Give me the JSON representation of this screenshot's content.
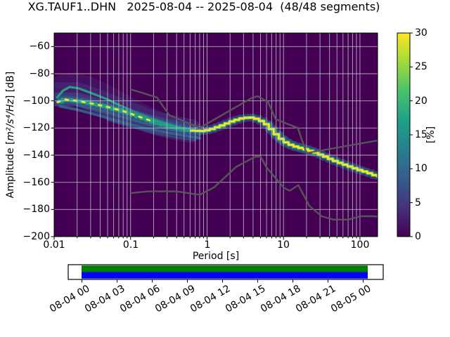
{
  "figure": {
    "title": "XG.TAUF1..DHN   2025-08-04 -- 2025-08-04  (48/48 segments)"
  },
  "axes": {
    "x": {
      "label": "Period [s]",
      "scale": "log",
      "min": 0.01,
      "max": 170,
      "tick_labels": [
        "0.01",
        "0.1",
        "1",
        "10",
        "100"
      ],
      "tick_values": [
        0.01,
        0.1,
        1,
        10,
        100
      ]
    },
    "y": {
      "label_prefix": "Amplitude [",
      "label_math": "m²/s⁴/Hz",
      "label_suffix": "] [dB]",
      "min": -200,
      "max": -50,
      "tick_labels": [
        "−60",
        "−80",
        "−100",
        "−120",
        "−140",
        "−160",
        "−180",
        "−200"
      ],
      "tick_values": [
        -60,
        -80,
        -100,
        -120,
        -140,
        -160,
        -180,
        -200
      ]
    }
  },
  "colorbar": {
    "label": "[%]",
    "min": 0,
    "max": 30,
    "tick_labels": [
      "0",
      "5",
      "10",
      "15",
      "20",
      "25",
      "30"
    ],
    "tick_values": [
      0,
      5,
      10,
      15,
      20,
      25,
      30
    ],
    "colormap": "viridis",
    "gradient_stops": [
      "#440154",
      "#46327e",
      "#365c8d",
      "#277f8e",
      "#1fa187",
      "#4ac16d",
      "#a0da39",
      "#fde725"
    ]
  },
  "timeline": {
    "tick_labels": [
      "08-04 00",
      "08-04 03",
      "08-04 06",
      "08-04 09",
      "08-04 12",
      "08-04 15",
      "08-04 18",
      "08-04 21",
      "08-05 00"
    ],
    "coverage_color_top": "#008000",
    "coverage_color_bottom": "#0000ff",
    "box_color": "#ffffff"
  },
  "chart_data": {
    "type": "heatmap",
    "title": "XG.TAUF1..DHN   2025-08-04 -- 2025-08-04  (48/48 segments)",
    "xlabel": "Period [s]",
    "ylabel": "Amplitude [m²/s⁴/Hz] [dB]",
    "xscale": "log",
    "xlim": [
      0.01,
      170
    ],
    "ylim": [
      -200,
      -50
    ],
    "colorbar_label": "[%]",
    "colorbar_lim": [
      0,
      30
    ],
    "colormap": "viridis",
    "grid": true,
    "background_color": "#440154",
    "grid_color": "#c6c6cc",
    "ppsd_mode_ridge": [
      [
        0.011,
        -101
      ],
      [
        0.014,
        -99
      ],
      [
        0.02,
        -100
      ],
      [
        0.03,
        -101.8
      ],
      [
        0.05,
        -104.5
      ],
      [
        0.08,
        -107.5
      ],
      [
        0.12,
        -111
      ],
      [
        0.18,
        -114.5
      ],
      [
        0.27,
        -117.5
      ],
      [
        0.4,
        -119.8
      ],
      [
        0.6,
        -121.8
      ],
      [
        0.85,
        -122.3
      ],
      [
        1.1,
        -121.3
      ],
      [
        1.6,
        -118
      ],
      [
        2.2,
        -114.8
      ],
      [
        3.0,
        -112.6
      ],
      [
        4.0,
        -112.3
      ],
      [
        4.8,
        -113.8
      ],
      [
        5.8,
        -116.5
      ],
      [
        7.0,
        -121
      ],
      [
        8.5,
        -126
      ],
      [
        10,
        -129.5
      ],
      [
        12,
        -132
      ],
      [
        15,
        -134
      ],
      [
        20,
        -135.8
      ],
      [
        26,
        -138
      ],
      [
        35,
        -141
      ],
      [
        50,
        -144.8
      ],
      [
        70,
        -147.8
      ],
      [
        95,
        -150.5
      ],
      [
        130,
        -153
      ],
      [
        170,
        -155.5
      ]
    ],
    "noise_models": {
      "color": "#595959",
      "nhnm": [
        [
          0.1,
          -91.5
        ],
        [
          0.22,
          -97.4
        ],
        [
          0.32,
          -110.5
        ],
        [
          0.8,
          -120
        ],
        [
          3.8,
          -98
        ],
        [
          4.6,
          -96.5
        ],
        [
          6.3,
          -101
        ],
        [
          7.9,
          -113.5
        ],
        [
          15.4,
          -120
        ],
        [
          20,
          -138.5
        ],
        [
          354.8,
          -126
        ]
      ],
      "nlnm": [
        [
          0.1,
          -168
        ],
        [
          0.17,
          -166.7
        ],
        [
          0.4,
          -166.7
        ],
        [
          0.8,
          -169.2
        ],
        [
          1.24,
          -163.7
        ],
        [
          2.4,
          -148.6
        ],
        [
          4.3,
          -141.1
        ],
        [
          5,
          -141.1
        ],
        [
          6,
          -149
        ],
        [
          10,
          -163.8
        ],
        [
          12,
          -166.2
        ],
        [
          15.6,
          -162.1
        ],
        [
          21.9,
          -177.5
        ],
        [
          31.6,
          -185
        ],
        [
          45,
          -187.5
        ],
        [
          70,
          -187.5
        ],
        [
          101,
          -185
        ],
        [
          154,
          -185
        ],
        [
          328,
          -187.5
        ]
      ]
    },
    "heat_layers": [
      {
        "name": "cloud-top",
        "color": "#453581",
        "width": 20,
        "opacity": 0.32,
        "points": [
          [
            0.012,
            -86
          ],
          [
            0.018,
            -84.5
          ],
          [
            0.028,
            -87
          ],
          [
            0.045,
            -92
          ],
          [
            0.07,
            -98
          ],
          [
            0.11,
            -104
          ],
          [
            0.18,
            -110
          ],
          [
            0.3,
            -115.5
          ],
          [
            0.5,
            -119.5
          ],
          [
            0.7,
            -121.5
          ]
        ]
      },
      {
        "name": "cloud-main",
        "color": "#443983",
        "width": 34,
        "opacity": 0.45,
        "points": [
          [
            0.011,
            -95
          ],
          [
            0.02,
            -95
          ],
          [
            0.04,
            -101
          ],
          [
            0.07,
            -106.5
          ],
          [
            0.12,
            -111.5
          ],
          [
            0.2,
            -116
          ],
          [
            0.35,
            -119.5
          ],
          [
            0.6,
            -122
          ]
        ]
      },
      {
        "name": "cloud-mid",
        "color": "#39568c",
        "width": 20,
        "opacity": 0.5,
        "points": [
          [
            0.011,
            -99
          ],
          [
            0.02,
            -99
          ],
          [
            0.04,
            -104
          ],
          [
            0.08,
            -109.5
          ],
          [
            0.14,
            -113.5
          ],
          [
            0.25,
            -117.5
          ],
          [
            0.45,
            -120.5
          ],
          [
            0.7,
            -122.5
          ]
        ]
      },
      {
        "name": "streak-low",
        "color": "#31688e",
        "width": 4,
        "opacity": 0.85,
        "points": [
          [
            0.012,
            -104
          ],
          [
            0.02,
            -106.5
          ],
          [
            0.04,
            -111
          ],
          [
            0.08,
            -116
          ],
          [
            0.15,
            -120
          ],
          [
            0.3,
            -123.5
          ],
          [
            0.55,
            -126
          ],
          [
            0.8,
            -127.5
          ]
        ]
      },
      {
        "name": "streak-low-2",
        "color": "#355f8d",
        "width": 3,
        "opacity": 0.6,
        "points": [
          [
            0.05,
            -114
          ],
          [
            0.1,
            -119
          ],
          [
            0.2,
            -123.5
          ],
          [
            0.4,
            -127
          ],
          [
            0.7,
            -129
          ]
        ]
      },
      {
        "name": "streak-mid",
        "color": "#2f6c8e",
        "width": 3.5,
        "opacity": 0.7,
        "points": [
          [
            0.02,
            -103
          ],
          [
            0.04,
            -107
          ],
          [
            0.08,
            -112
          ],
          [
            0.15,
            -116.5
          ],
          [
            0.3,
            -120.5
          ],
          [
            0.5,
            -122.5
          ]
        ]
      },
      {
        "name": "arc-teal",
        "color": "#25a584",
        "width": 3.2,
        "opacity": 0.95,
        "points": [
          [
            0.011,
            -97.5
          ],
          [
            0.013,
            -92.5
          ],
          [
            0.016,
            -89.8
          ],
          [
            0.021,
            -90.8
          ],
          [
            0.03,
            -94
          ],
          [
            0.05,
            -99
          ],
          [
            0.08,
            -104.5
          ],
          [
            0.13,
            -109.5
          ],
          [
            0.21,
            -114
          ],
          [
            0.35,
            -118
          ],
          [
            0.55,
            -121
          ],
          [
            0.75,
            -122.5
          ]
        ]
      },
      {
        "name": "ridge-halo",
        "color": "#31688e",
        "width": 11,
        "opacity": 0.55,
        "stepped": true,
        "ref": "ppsd_mode_ridge"
      },
      {
        "name": "ridge-spread",
        "color": "#26828e",
        "width": 12,
        "opacity": 0.3,
        "stepped": true,
        "points": [
          [
            5.8,
            -116.5
          ],
          [
            7,
            -121
          ],
          [
            8.5,
            -126
          ],
          [
            10,
            -129.5
          ],
          [
            12,
            -132
          ],
          [
            15,
            -134
          ],
          [
            20,
            -135.8
          ],
          [
            26,
            -138
          ]
        ]
      },
      {
        "name": "ridge-teal",
        "color": "#1fa187",
        "width": 5.5,
        "opacity": 0.95,
        "stepped": true,
        "ref": "ppsd_mode_ridge"
      },
      {
        "name": "ridge-yellow-left",
        "color": "#f8e621",
        "width": 2.6,
        "opacity": 1,
        "dash": "4 8",
        "points": [
          [
            0.011,
            -101
          ],
          [
            0.014,
            -99
          ],
          [
            0.02,
            -100
          ],
          [
            0.03,
            -101.8
          ],
          [
            0.05,
            -104.5
          ],
          [
            0.08,
            -107.5
          ],
          [
            0.12,
            -111
          ],
          [
            0.18,
            -114.5
          ]
        ]
      },
      {
        "name": "ridge-yellow",
        "color": "#f8e621",
        "width": 3,
        "opacity": 1,
        "stepped": true,
        "points": [
          [
            0.6,
            -121.8
          ],
          [
            0.85,
            -122.3
          ],
          [
            1.1,
            -121.3
          ],
          [
            1.6,
            -118
          ],
          [
            2.2,
            -114.8
          ],
          [
            3.0,
            -112.6
          ],
          [
            4.0,
            -112.3
          ],
          [
            4.8,
            -113.8
          ],
          [
            5.8,
            -116.5
          ],
          [
            7.0,
            -121
          ],
          [
            8.5,
            -126
          ],
          [
            10,
            -129.5
          ],
          [
            12,
            -132
          ],
          [
            15,
            -134
          ],
          [
            20,
            -135.8
          ],
          [
            26,
            -138
          ],
          [
            35,
            -141
          ],
          [
            50,
            -144.8
          ],
          [
            70,
            -147.8
          ],
          [
            95,
            -150.5
          ],
          [
            130,
            -153
          ],
          [
            170,
            -155.5
          ]
        ]
      }
    ]
  }
}
